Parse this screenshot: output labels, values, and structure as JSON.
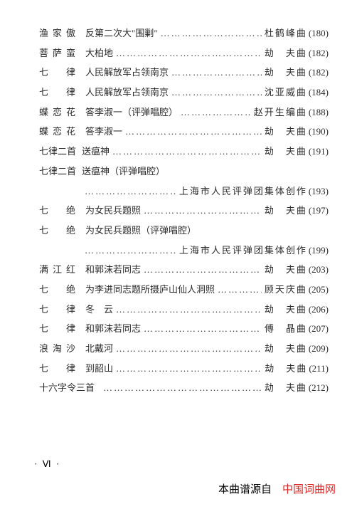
{
  "entries": [
    {
      "tune": "渔家傲",
      "title": "反第二次大\"围剿\"",
      "composer": "杜鹤峰曲",
      "page": "(180)"
    },
    {
      "tune": "菩萨蛮",
      "title": "大柏地",
      "composer": "劫　夫曲",
      "page": "(182)"
    },
    {
      "tune": "七　律",
      "title": "人民解放军占领南京",
      "composer": "劫　夫曲",
      "page": "(182)"
    },
    {
      "tune": "七　律",
      "title": "人民解放军占领南京",
      "composer": "沈亚威曲",
      "page": "(184)"
    },
    {
      "tune": "蝶恋花",
      "title": "答李淑一（评弹唱腔）",
      "composer": "赵开生编曲",
      "page": "(188)"
    },
    {
      "tune": "蝶恋花",
      "title": "答李淑一",
      "composer": "劫　夫曲",
      "page": "(190)"
    },
    {
      "tune": "七律二首",
      "tune_ls": "0px",
      "title": "送瘟神",
      "composer": "劫　夫曲",
      "page": "(191)"
    },
    {
      "tune": "七律二首",
      "tune_ls": "0px",
      "title": "送瘟神（评弹唱腔）",
      "composer": "",
      "page": ""
    },
    {
      "cont": true,
      "composer": "上海市人民评弹团集体创作",
      "page": "(193)"
    },
    {
      "tune": "七　绝",
      "title": "为女民兵题照",
      "composer": "劫　夫曲",
      "page": "(197)"
    },
    {
      "tune": "七　绝",
      "title": "为女民兵题照（评弹唱腔）",
      "composer": "",
      "page": ""
    },
    {
      "cont": true,
      "composer": "上海市人民评弹团集体创作",
      "page": "(199)"
    },
    {
      "tune": "满江红",
      "title": "和郭沫若同志",
      "composer": "劫　夫曲",
      "page": "(203)"
    },
    {
      "tune": "七　绝",
      "title": "为李进同志题所摄庐山仙人洞照",
      "composer": "顾天庆曲",
      "page": "(205)"
    },
    {
      "tune": "七　律",
      "title": "冬　云",
      "composer": "劫　夫曲",
      "page": "(206)"
    },
    {
      "tune": "七　律",
      "title": "和郭沫若同志",
      "composer": "傅　晶曲",
      "page": "(207)"
    },
    {
      "tune": "浪淘沙",
      "title": "北戴河",
      "composer": "劫　夫曲",
      "page": "(209)"
    },
    {
      "tune": "七　律",
      "title": "到韶山",
      "composer": "劫　夫曲",
      "page": "(211)"
    },
    {
      "tune": "十六字令三首",
      "tune_ls": "0px",
      "title": "",
      "composer": "劫　夫曲",
      "page": "(212)"
    }
  ],
  "footer_left": "· Ⅵ ·",
  "footer_src_label": "本曲谱源自　",
  "footer_src_site": "中国词曲网",
  "dots_fill": "……………………………………………………",
  "colors": {
    "text": "#2a2a2a",
    "red": "#d22"
  }
}
